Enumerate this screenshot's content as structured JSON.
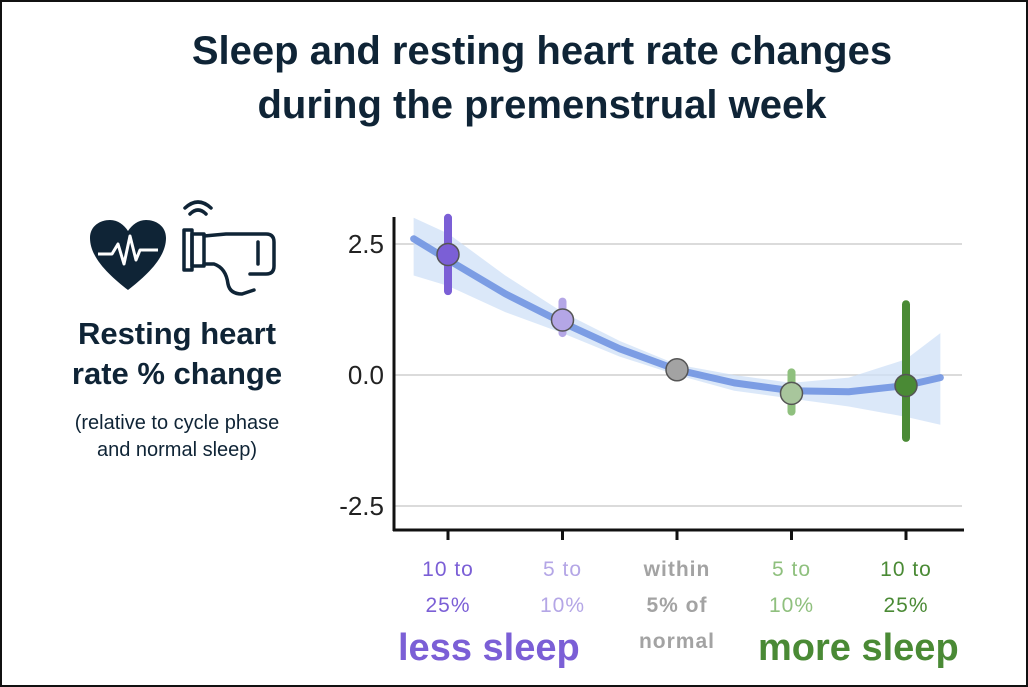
{
  "title_line1": "Sleep and resting heart rate changes",
  "title_line2": "during the premenstrual week",
  "icons": [
    "heart-rate-icon",
    "smartwatch-icon"
  ],
  "y_axis": {
    "label_line1": "Resting heart",
    "label_line2": "rate % change",
    "note_line1": "(relative to cycle phase",
    "note_line2": "and normal sleep)"
  },
  "x_categories": [
    {
      "line1": "10 to",
      "line2": "25%",
      "line3": "",
      "color": "#7b5fd6",
      "bold": false
    },
    {
      "line1": "5 to",
      "line2": "10%",
      "line3": "",
      "color": "#b4a6e6",
      "bold": false
    },
    {
      "line1": "within",
      "line2": "5% of",
      "line3": "normal",
      "color": "#a3a3a3",
      "bold": true
    },
    {
      "line1": "5 to",
      "line2": "10%",
      "line3": "",
      "color": "#8fc07e",
      "bold": false
    },
    {
      "line1": "10 to",
      "line2": "25%",
      "line3": "",
      "color": "#4a8a35",
      "bold": false
    }
  ],
  "groups": {
    "less": {
      "label": "less sleep",
      "color": "#7b5fd6"
    },
    "more": {
      "label": "more sleep",
      "color": "#4a8a35"
    }
  },
  "chart_data": {
    "type": "scatter",
    "title": "Sleep and resting heart rate changes during the premenstrual week",
    "ylabel": "Resting heart rate % change",
    "categories": [
      "10 to 25% less sleep",
      "5 to 10% less sleep",
      "within 5% of normal",
      "5 to 10% more sleep",
      "10 to 25% more sleep"
    ],
    "y_ticks": [
      "2.5",
      "0.0",
      "-2.5"
    ],
    "y_tick_values": [
      2.5,
      0.0,
      -2.5
    ],
    "ylim": [
      -3.0,
      3.0
    ],
    "grid": true,
    "points": [
      {
        "value": 2.3,
        "low": 1.6,
        "high": 3.0,
        "color": "#7b5fd6",
        "fill": "#7b5fd6"
      },
      {
        "value": 1.05,
        "low": 0.8,
        "high": 1.4,
        "color": "#b4a6e6",
        "fill": "#b4a6e6"
      },
      {
        "value": 0.1,
        "low": 0.05,
        "high": 0.15,
        "color": "#a3a3a3",
        "fill": "#a3a3a3"
      },
      {
        "value": -0.35,
        "low": -0.7,
        "high": 0.05,
        "color": "#8fc07e",
        "fill": "#a8c69c"
      },
      {
        "value": -0.2,
        "low": -1.2,
        "high": 1.35,
        "color": "#4a8a35",
        "fill": "#4a8a35"
      }
    ],
    "fit": {
      "color": "#6b8fe0",
      "band_color": "#cfe0f7",
      "x": [
        -0.3,
        0,
        0.5,
        1,
        1.5,
        2,
        2.5,
        3,
        3.5,
        4,
        4.3
      ],
      "y": [
        2.6,
        2.2,
        1.55,
        1.0,
        0.5,
        0.1,
        -0.15,
        -0.3,
        -0.32,
        -0.2,
        -0.05
      ],
      "band_low": [
        1.9,
        1.7,
        1.2,
        0.8,
        0.35,
        0.0,
        -0.3,
        -0.45,
        -0.6,
        -0.8,
        -0.95
      ],
      "band_high": [
        3.0,
        2.7,
        1.9,
        1.2,
        0.65,
        0.2,
        0.0,
        -0.15,
        -0.05,
        0.3,
        0.8
      ]
    }
  }
}
